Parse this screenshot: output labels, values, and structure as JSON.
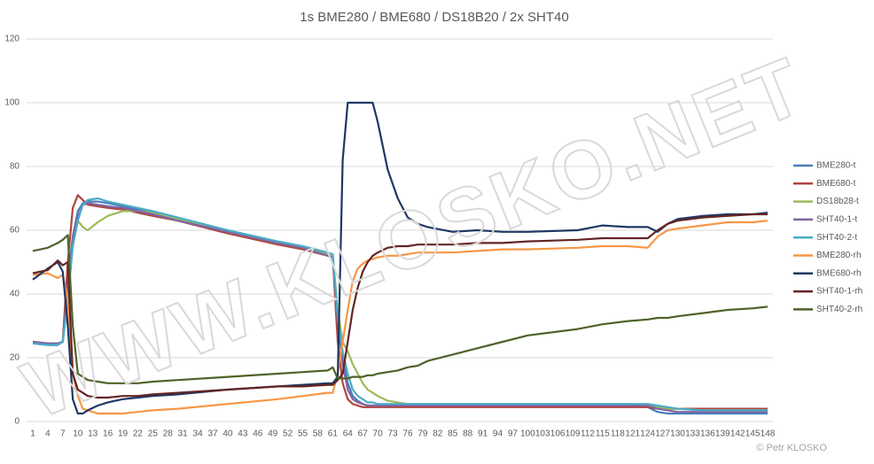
{
  "chart_data": {
    "type": "line",
    "title": "1s BME280 / BME680 / DS18B20 / 2x SHT40",
    "watermark": "WWW.KLOSKO.NET",
    "credit": "© Petr KLOSKO",
    "grid": true,
    "legend": "right",
    "x": [
      1,
      4,
      6,
      7,
      8,
      9,
      10,
      11,
      12,
      14,
      16,
      19,
      22,
      25,
      30,
      40,
      50,
      55,
      60,
      61,
      62,
      63,
      64,
      65,
      66,
      67,
      68,
      69,
      70,
      72,
      74,
      76,
      78,
      80,
      85,
      90,
      95,
      100,
      110,
      115,
      120,
      124,
      126,
      128,
      130,
      135,
      140,
      145,
      148
    ],
    "xlim": [
      1,
      148
    ],
    "xticks": [
      1,
      4,
      7,
      10,
      13,
      16,
      19,
      22,
      25,
      28,
      31,
      34,
      37,
      40,
      43,
      46,
      49,
      52,
      55,
      58,
      61,
      64,
      67,
      70,
      73,
      76,
      79,
      82,
      85,
      88,
      91,
      94,
      97,
      100,
      103,
      106,
      109,
      112,
      115,
      118,
      121,
      124,
      127,
      130,
      133,
      136,
      139,
      142,
      145,
      148
    ],
    "ylim": [
      0,
      120
    ],
    "yticks": [
      0,
      20,
      40,
      60,
      80,
      100,
      120
    ],
    "series": [
      {
        "name": "BME280-t",
        "color": "#4a7ebb",
        "values": [
          24.5,
          24,
          24,
          25,
          45,
          58,
          66,
          68.5,
          69,
          69,
          68.5,
          67.5,
          66.5,
          65.5,
          63.5,
          59.5,
          56,
          54.5,
          52.5,
          52,
          30,
          20,
          12,
          8,
          6.5,
          5.5,
          5,
          5,
          5,
          5,
          5,
          5,
          5,
          5,
          5,
          5,
          5,
          5,
          5,
          5,
          5,
          4.5,
          3,
          2.5,
          2.5,
          2.5,
          2.5,
          2.5,
          2.5
        ]
      },
      {
        "name": "BME680-t",
        "color": "#b0443c",
        "values": [
          25,
          24.5,
          24.5,
          25,
          50,
          67,
          71,
          69.5,
          68,
          67.5,
          67,
          66.5,
          65.5,
          64.5,
          63,
          59,
          55.5,
          54,
          52,
          51.5,
          25,
          12,
          7,
          5.5,
          5,
          4.5,
          4.5,
          4.5,
          4.5,
          4.5,
          4.5,
          4.5,
          4.5,
          4.5,
          4.5,
          4.5,
          4.5,
          4.5,
          4.5,
          4.5,
          4.5,
          4.5,
          4,
          4,
          4,
          4,
          4,
          4,
          4
        ]
      },
      {
        "name": "DS18b28-t",
        "color": "#9bbb59",
        "values": [
          24.5,
          24.5,
          24.5,
          25,
          40,
          55,
          63,
          61,
          60,
          62.5,
          64.5,
          66,
          66,
          65.5,
          63.5,
          59.5,
          56,
          54.5,
          52.5,
          52,
          35,
          25,
          22,
          18,
          15,
          12,
          10,
          9,
          8,
          6.5,
          6,
          5.5,
          5.5,
          5.5,
          5.5,
          5.5,
          5.5,
          5.5,
          5.5,
          5.5,
          5.5,
          5,
          4.5,
          4,
          4,
          3.5,
          3.5,
          3.5,
          3.5
        ]
      },
      {
        "name": "SHT40-1-t",
        "color": "#8064a2",
        "values": [
          25,
          24.5,
          24.5,
          25,
          42,
          57,
          64,
          68,
          68.5,
          68,
          67.5,
          67,
          66,
          65,
          63,
          59.5,
          56,
          54.5,
          52,
          51.5,
          32,
          18,
          10,
          7,
          6,
          5.5,
          5,
          5,
          5,
          5,
          5,
          5,
          5,
          5,
          5,
          5,
          5,
          5,
          5,
          5,
          5,
          5,
          4,
          3.5,
          3,
          3,
          3,
          3,
          3
        ]
      },
      {
        "name": "SHT40-2-t",
        "color": "#4bacc6",
        "values": [
          24.5,
          24,
          24,
          25,
          38,
          55,
          63,
          68,
          69.5,
          70,
          69,
          68,
          67,
          66,
          64,
          60,
          56.5,
          55,
          53,
          52.5,
          33,
          22,
          15,
          10,
          8,
          7,
          6,
          6,
          5.5,
          5.5,
          5.5,
          5.5,
          5.5,
          5.5,
          5.5,
          5.5,
          5.5,
          5.5,
          5.5,
          5.5,
          5.5,
          5.5,
          5,
          4.5,
          4,
          3.5,
          3.5,
          3.5,
          3.5
        ]
      },
      {
        "name": "BME280-rh",
        "color": "#f79646",
        "values": [
          46,
          46.5,
          45,
          46,
          38,
          15,
          8,
          4,
          3.5,
          2.5,
          2.5,
          2.5,
          3,
          3.5,
          4,
          5.5,
          7,
          8,
          9,
          9,
          15,
          25,
          35,
          44,
          48,
          49.5,
          50.5,
          51,
          51.5,
          52,
          52,
          52.5,
          53,
          53,
          53,
          53.5,
          54,
          54,
          54.5,
          55,
          55,
          54.5,
          58,
          60,
          60.5,
          61.5,
          62.5,
          62.5,
          63
        ]
      },
      {
        "name": "BME680-rh",
        "color": "#1f3864",
        "values": [
          44.5,
          48,
          50,
          47,
          30,
          7,
          2.5,
          2.5,
          3.5,
          5,
          6,
          7,
          7.5,
          8,
          8.5,
          10,
          11,
          11.5,
          12,
          12,
          14,
          82,
          100,
          100,
          100,
          100,
          100,
          100,
          94,
          79,
          70,
          64,
          62,
          61,
          59.5,
          60,
          59.5,
          59.5,
          60,
          61.5,
          61,
          61,
          59.5,
          62,
          63.5,
          64.5,
          65,
          65,
          65.5
        ]
      },
      {
        "name": "SHT40-1-rh",
        "color": "#632523",
        "values": [
          46.5,
          47.5,
          50.5,
          49,
          50,
          15,
          10,
          9,
          8,
          7.5,
          7.5,
          8,
          8,
          8.5,
          9,
          10,
          11,
          11,
          11.5,
          11.5,
          13,
          15,
          25,
          35,
          42,
          47,
          50,
          52,
          53,
          54.5,
          55,
          55,
          55.5,
          55.5,
          55.5,
          56,
          56,
          56.5,
          57,
          57.5,
          57.5,
          57.5,
          60,
          62,
          63,
          64,
          64.5,
          65,
          65
        ]
      },
      {
        "name": "SHT40-2-rh",
        "color": "#4f6228",
        "values": [
          53.5,
          54.5,
          56,
          57,
          58.5,
          30,
          15,
          14,
          13,
          12.5,
          12,
          12,
          12,
          12.5,
          13,
          14,
          15,
          15.5,
          16,
          17,
          13.5,
          13.5,
          13.5,
          14,
          14,
          14,
          14.5,
          14.5,
          15,
          15.5,
          16,
          17,
          17.5,
          19,
          21,
          23,
          25,
          27,
          29,
          30.5,
          31.5,
          32,
          32.5,
          32.5,
          33,
          34,
          35,
          35.5,
          36
        ]
      }
    ]
  }
}
